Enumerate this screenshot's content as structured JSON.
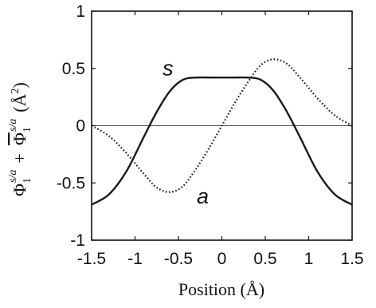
{
  "chart_data": {
    "type": "line",
    "xlabel": "Position (Å)",
    "ylabel": {
      "phi": "Φ",
      "sub": "1",
      "sup": "s/a",
      "plus": "+",
      "unit_open": "(Å",
      "unit_exp": "2",
      "unit_close": ")"
    },
    "xlim": [
      -1.5,
      1.5
    ],
    "ylim": [
      -1,
      1
    ],
    "x_ticks": [
      -1.5,
      -1,
      -0.5,
      0,
      0.5,
      1,
      1.5
    ],
    "x_tick_labels": [
      "-1.5",
      "-1",
      "-0.5",
      "0",
      "0.5",
      "1",
      "1.5"
    ],
    "y_ticks": [
      -1,
      -0.5,
      0,
      0.5,
      1
    ],
    "y_tick_labels": [
      "-1",
      "-0.5",
      "0",
      "0.5",
      "1"
    ],
    "grid": false,
    "zero_line": 0,
    "annotations": [
      {
        "text": "s",
        "x": -0.62,
        "y": 0.44
      },
      {
        "text": "a",
        "x": -0.22,
        "y": -0.68
      }
    ],
    "series": [
      {
        "style": "solid",
        "color": "#1a1a1a",
        "x": [
          -1.5,
          -1.3,
          -1.1,
          -0.9,
          -0.75,
          -0.6,
          -0.45,
          -0.3,
          -0.1,
          0.1,
          0.3,
          0.45,
          0.6,
          0.75,
          0.9,
          1.1,
          1.3,
          1.5
        ],
        "y": [
          -0.69,
          -0.6,
          -0.4,
          -0.1,
          0.12,
          0.3,
          0.4,
          0.42,
          0.42,
          0.42,
          0.42,
          0.4,
          0.3,
          0.12,
          -0.1,
          -0.4,
          -0.6,
          -0.69
        ]
      },
      {
        "style": "dotted",
        "color": "#1a1a1a",
        "x": [
          -1.5,
          -1.3,
          -1.1,
          -0.9,
          -0.75,
          -0.6,
          -0.45,
          -0.3,
          -0.15,
          0,
          0.15,
          0.3,
          0.45,
          0.6,
          0.75,
          0.9,
          1.1,
          1.3,
          1.5
        ],
        "y": [
          0.0,
          -0.09,
          -0.24,
          -0.42,
          -0.54,
          -0.58,
          -0.53,
          -0.38,
          -0.2,
          0.0,
          0.2,
          0.38,
          0.53,
          0.58,
          0.54,
          0.42,
          0.24,
          0.09,
          0.0
        ]
      }
    ]
  }
}
